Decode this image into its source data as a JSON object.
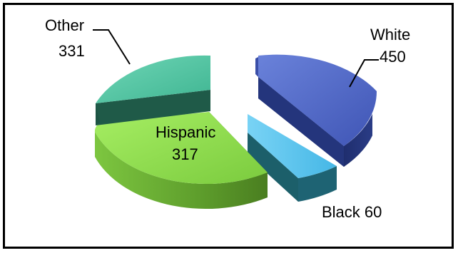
{
  "chart_data": {
    "type": "pie",
    "three_d": true,
    "exploded": true,
    "legend": "none",
    "slices": [
      {
        "label": "White",
        "value": 450,
        "color": "#4F67C8"
      },
      {
        "label": "Black",
        "value": 60,
        "color": "#5BC4EE"
      },
      {
        "label": "Hispanic",
        "value": 317,
        "color": "#8FDB4E"
      },
      {
        "label": "Other",
        "value": 331,
        "color": "#5BC9A6"
      }
    ],
    "data_labels": {
      "white_name": "White",
      "white_value": "450",
      "black_text": "Black 60",
      "hispanic_name": "Hispanic",
      "hispanic_value": "317",
      "other_name": "Other",
      "other_value": "331"
    }
  }
}
